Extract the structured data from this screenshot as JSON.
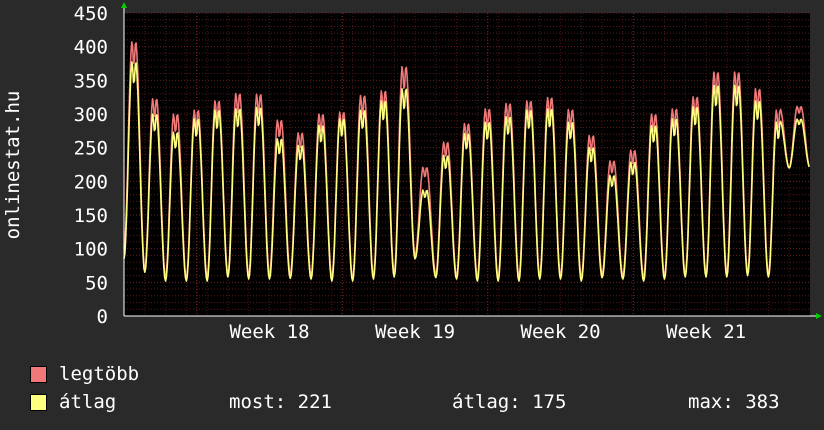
{
  "chart_data": {
    "type": "line",
    "ylabel": "onlinestat.hu",
    "ylim": [
      0,
      450
    ],
    "yticks": [
      0,
      50,
      100,
      150,
      200,
      250,
      300,
      350,
      400,
      450
    ],
    "xticks": [
      "Week 18",
      "Week 19",
      "Week 20",
      "Week 21"
    ],
    "grid": true,
    "days": 33,
    "series": [
      {
        "name": "legtöbb",
        "color": "#f07878",
        "daily_peaks": [
          410,
          325,
          302,
          308,
          322,
          333,
          332,
          293,
          274,
          302,
          305,
          330,
          337,
          373,
          222,
          260,
          288,
          310,
          318,
          322,
          327,
          309,
          270,
          232,
          248,
          302,
          310,
          328,
          365,
          365,
          340,
          308,
          312
        ],
        "daily_lows": [
          100,
          70,
          58,
          56,
          58,
          62,
          60,
          62,
          62,
          60,
          58,
          56,
          60,
          64,
          90,
          62,
          60,
          58,
          57,
          58,
          60,
          60,
          58,
          62,
          60,
          58,
          60,
          62,
          63,
          64,
          65,
          62,
          220
        ]
      },
      {
        "name": "átlag",
        "color": "#ffff80",
        "daily_peaks": [
          380,
          302,
          275,
          295,
          308,
          310,
          312,
          265,
          255,
          285,
          295,
          308,
          322,
          340,
          188,
          240,
          273,
          290,
          298,
          308,
          310,
          290,
          252,
          210,
          230,
          285,
          295,
          313,
          345,
          345,
          322,
          290,
          293
        ],
        "daily_lows": [
          85,
          65,
          52,
          52,
          52,
          58,
          55,
          55,
          56,
          55,
          52,
          52,
          55,
          58,
          85,
          57,
          55,
          52,
          52,
          52,
          55,
          55,
          52,
          57,
          55,
          52,
          55,
          58,
          58,
          58,
          60,
          58,
          220
        ]
      }
    ]
  },
  "legend": {
    "items": [
      {
        "label": "legtöbb",
        "color": "#f07878"
      },
      {
        "label": "átlag",
        "color": "#ffff80"
      }
    ]
  },
  "stats": {
    "current": "most: 221",
    "average": "átlag: 175",
    "max": "max: 383"
  }
}
